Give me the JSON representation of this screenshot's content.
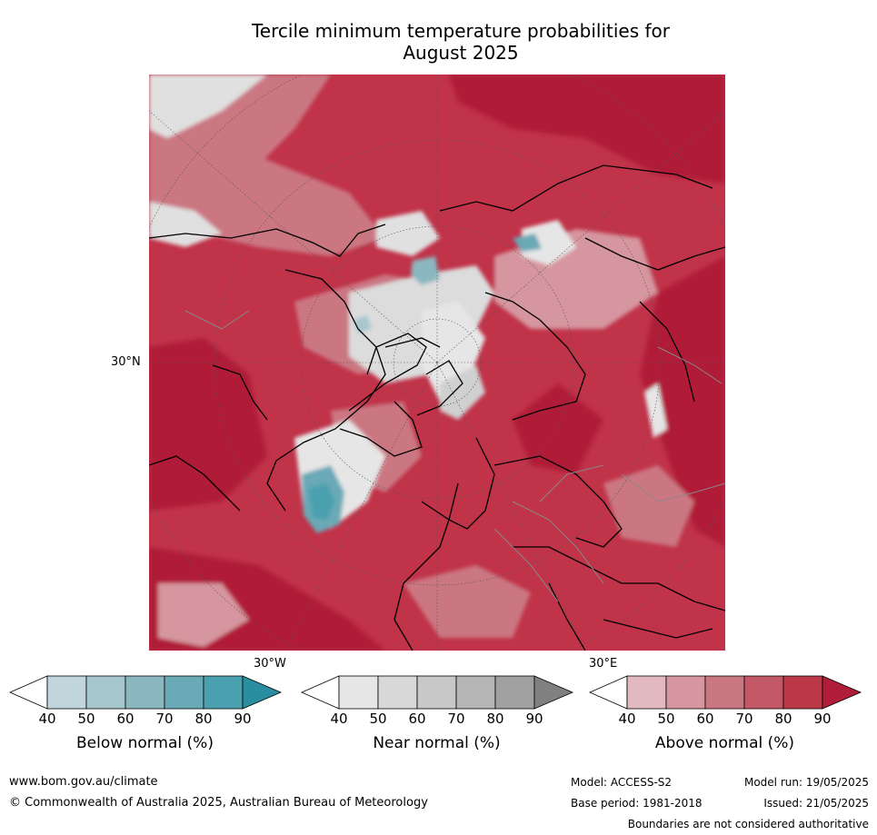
{
  "title_line1": "Tercile minimum temperature probabilities for",
  "title_line2": "August 2025",
  "map": {
    "lat_label": "30°N",
    "lon_label_left": "30°W",
    "lon_label_right": "30°E"
  },
  "colorbars": [
    {
      "label": "Below normal (%)",
      "ticks": [
        "40",
        "50",
        "60",
        "70",
        "80",
        "90"
      ],
      "colors": [
        "#c1d6dc",
        "#a6c6cd",
        "#8bb7c0",
        "#6aa9b6",
        "#4ba0b0",
        "#2a8ea1"
      ]
    },
    {
      "label": "Near normal (%)",
      "ticks": [
        "40",
        "50",
        "60",
        "70",
        "80",
        "90"
      ],
      "colors": [
        "#e6e6e6",
        "#d8d8d8",
        "#c8c8c8",
        "#b5b5b5",
        "#a0a0a0",
        "#808080"
      ]
    },
    {
      "label": "Above normal (%)",
      "ticks": [
        "40",
        "50",
        "60",
        "70",
        "80",
        "90"
      ],
      "colors": [
        "#e2b9bf",
        "#d6969f",
        "#cb7782",
        "#c35866",
        "#bb3849",
        "#b01d38"
      ]
    }
  ],
  "footer": {
    "website": "www.bom.gov.au/climate",
    "copyright": "© Commonwealth of Australia 2025, Australian Bureau of Meteorology",
    "model": "Model: ACCESS-S2",
    "base_period": "Base period: 1981-2018",
    "model_run": "Model run: 19/05/2025",
    "issued": "Issued: 21/05/2025",
    "disclaimer": "Boundaries are not considered authoritative"
  }
}
